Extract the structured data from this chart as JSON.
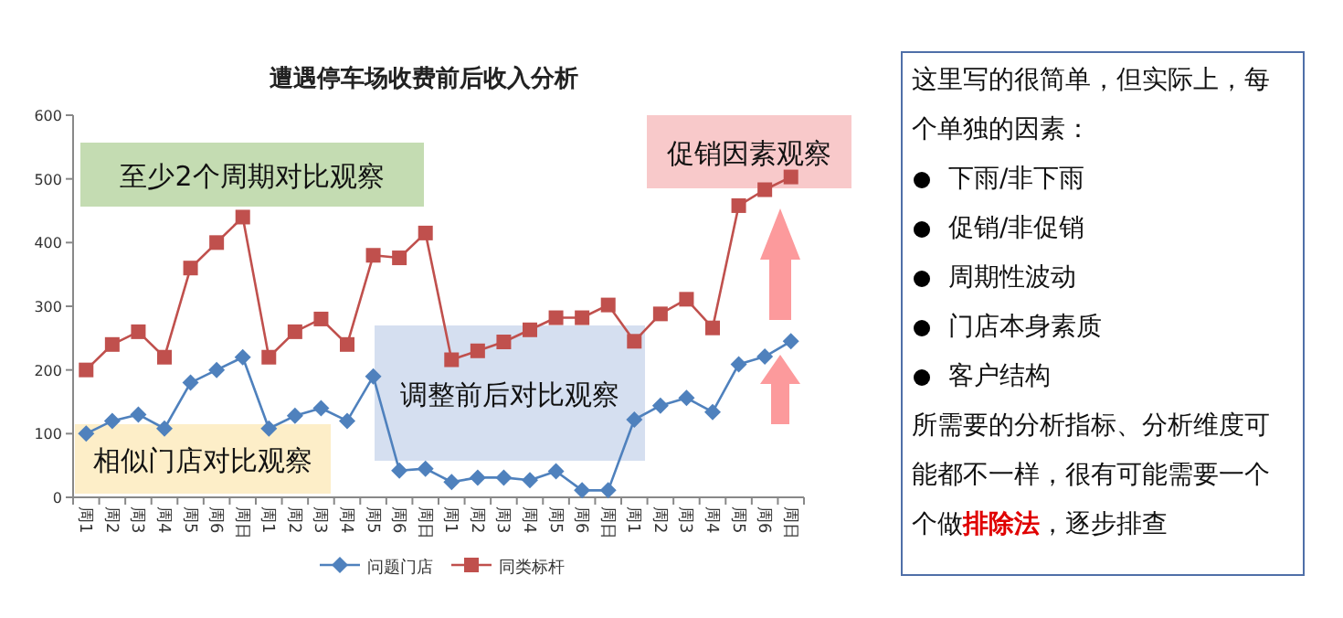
{
  "chart_data": [
    {
      "type": "line",
      "title": "遭遇停车场收费前后收入分析",
      "categories": [
        "周1",
        "周2",
        "周3",
        "周4",
        "周5",
        "周6",
        "周日",
        "周1",
        "周2",
        "周3",
        "周4",
        "周5",
        "周6",
        "周日",
        "周1",
        "周2",
        "周3",
        "周4",
        "周5",
        "周6",
        "周日",
        "周1",
        "周2",
        "周3",
        "周4",
        "周5",
        "周6",
        "周日"
      ],
      "ylim": [
        0,
        600
      ],
      "yticks": [
        0,
        100,
        200,
        300,
        400,
        500,
        600
      ],
      "grid": false,
      "legend": "bottom",
      "series": [
        {
          "name": "问题门店",
          "color": "#4f81bd",
          "marker": "diamond",
          "values": [
            100,
            120,
            130,
            108,
            180,
            200,
            220,
            108,
            128,
            140,
            120,
            190,
            42,
            45,
            24,
            31,
            31,
            27,
            41,
            11,
            11,
            122,
            144,
            156,
            134,
            209,
            221,
            245
          ]
        },
        {
          "name": "同类标杆",
          "color": "#c0504d",
          "marker": "square",
          "values": [
            200,
            240,
            260,
            220,
            360,
            400,
            440,
            220,
            260,
            280,
            240,
            380,
            376,
            415,
            216,
            230,
            244,
            263,
            282,
            282,
            302,
            245,
            288,
            311,
            266,
            458,
            483,
            503
          ]
        }
      ],
      "annotations": [
        "至少2个周期对比观察",
        "相似门店对比观察",
        "调整前后对比观察",
        "促销因素观察"
      ]
    },
    {
      "type": "other",
      "annotations": [
        "这里写的很简单，但实际上，每个单独的因素：",
        "下雨/非下雨",
        "促销/非促销",
        "周期性波动",
        "门店本身素质",
        "客户结构",
        "所需要的分析指标、分析维度可能都不一样，很有可能需要一个个做",
        "排除法",
        "，逐步排查"
      ]
    }
  ]
}
